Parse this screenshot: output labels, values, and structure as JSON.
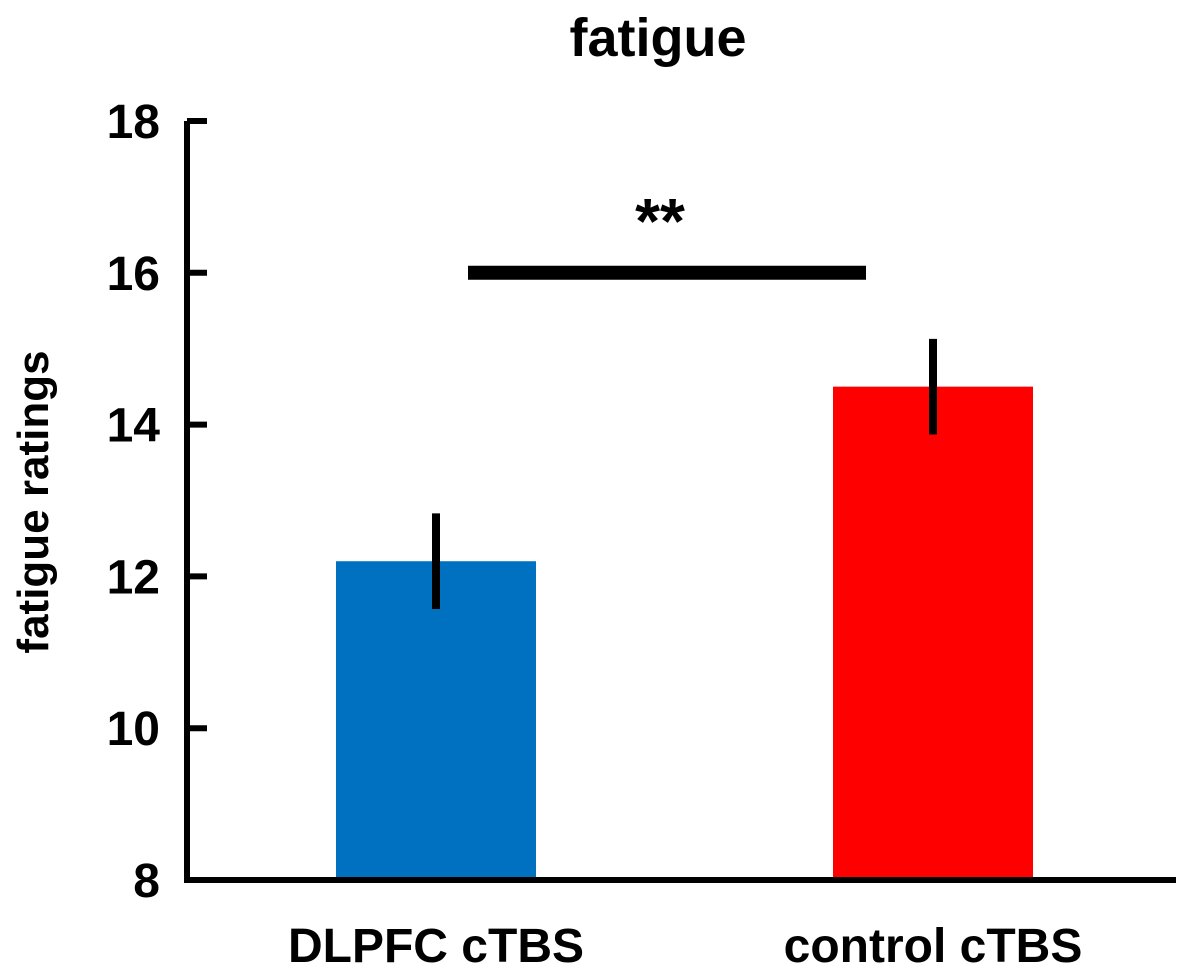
{
  "chart_data": {
    "type": "bar",
    "title": "fatigue",
    "xlabel": "",
    "ylabel": "fatigue ratings",
    "ylim": [
      8,
      18
    ],
    "yticks": [
      8,
      10,
      12,
      14,
      16,
      18
    ],
    "grid": false,
    "categories": [
      "DLPFC cTBS",
      "control cTBS"
    ],
    "values": [
      12.2,
      14.5
    ],
    "error": [
      0.63,
      0.63
    ],
    "colors": [
      "#0070C0",
      "#FF0000"
    ],
    "significance": {
      "label": "**",
      "between": [
        "DLPFC cTBS",
        "control cTBS"
      ],
      "bar_value": 16.0
    }
  }
}
